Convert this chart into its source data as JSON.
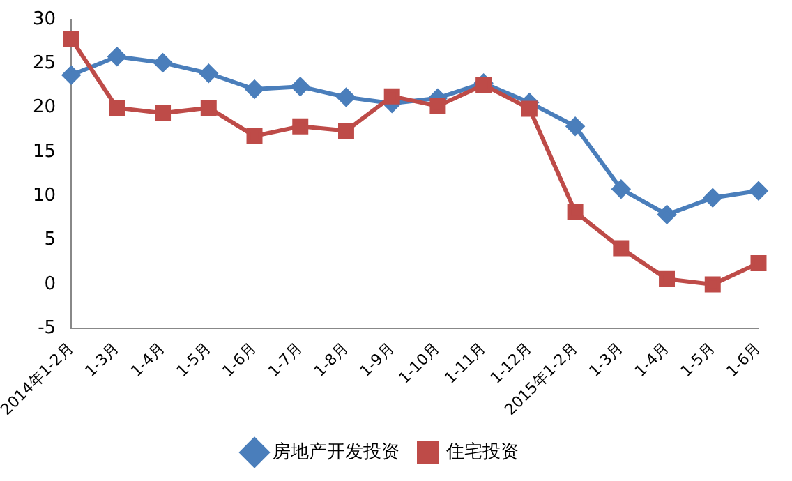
{
  "chart_data": {
    "type": "line",
    "categories": [
      "2014年1-2月",
      "1-3月",
      "1-4月",
      "1-5月",
      "1-6月",
      "1-7月",
      "1-8月",
      "1-9月",
      "1-10月",
      "1-11月",
      "1-12月",
      "2015年1-2月",
      "1-3月",
      "1-4月",
      "1-5月",
      "1-6月"
    ],
    "series": [
      {
        "name": "房地产开发投资",
        "color": "#4a7ebb",
        "marker": "diamond",
        "values": [
          23.7,
          25.8,
          25.1,
          23.9,
          22.1,
          22.4,
          21.2,
          20.5,
          21.1,
          22.8,
          20.6,
          17.9,
          10.8,
          7.9,
          9.8,
          10.6
        ]
      },
      {
        "name": "住宅投资",
        "color": "#be4b48",
        "marker": "square",
        "values": [
          27.8,
          20.0,
          19.4,
          20.0,
          16.8,
          17.9,
          17.4,
          21.3,
          20.2,
          22.6,
          19.9,
          8.2,
          4.1,
          0.6,
          0.0,
          2.4
        ]
      }
    ],
    "ylim": [
      -5,
      30
    ],
    "yticks": [
      -5,
      0,
      5,
      10,
      15,
      20,
      25,
      30
    ],
    "grid": false,
    "legend": "bottom"
  }
}
